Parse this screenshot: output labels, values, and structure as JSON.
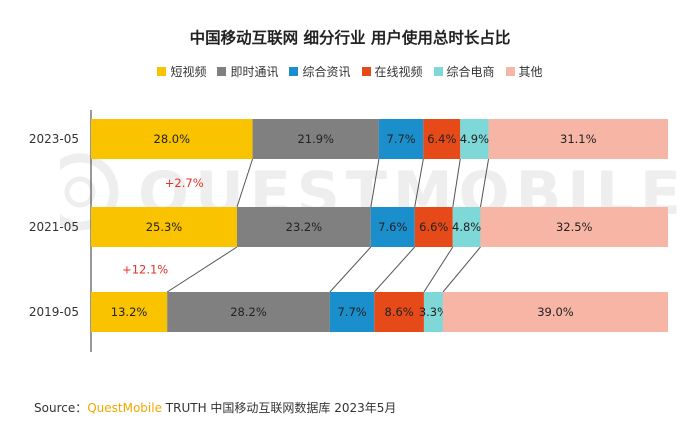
{
  "watermark": "QUESTMOBILE",
  "source": {
    "label": "Source：",
    "brand": "QuestMobile",
    "rest": " TRUTH 中国移动互联网数据库 2023年5月"
  },
  "colors": {
    "短视频": "#f9c300",
    "即时通讯": "#808080",
    "综合资讯": "#1a8fcb",
    "在线视频": "#e64a19",
    "综合电商": "#7fd8d8",
    "其他": "#f7b6a5"
  },
  "chart_data": {
    "type": "bar",
    "orientation": "horizontal",
    "stacked": true,
    "percent_stacked": true,
    "title": "中国移动互联网 细分行业 用户使用总时长占比",
    "categories": [
      "2023-05",
      "2021-05",
      "2019-05"
    ],
    "series": [
      {
        "name": "短视频",
        "values": [
          28.0,
          25.3,
          13.2
        ],
        "labels": [
          "28.0%",
          "25.3%",
          "13.2%"
        ]
      },
      {
        "name": "即时通讯",
        "values": [
          21.9,
          23.2,
          28.2
        ],
        "labels": [
          "21.9%",
          "23.2%",
          "28.2%"
        ]
      },
      {
        "name": "综合资讯",
        "values": [
          7.7,
          7.6,
          7.7
        ],
        "labels": [
          "7.7%",
          "7.6%",
          "7.7%"
        ]
      },
      {
        "name": "在线视频",
        "values": [
          6.4,
          6.6,
          8.6
        ],
        "labels": [
          "6.4%",
          "6.6%",
          "8.6%"
        ]
      },
      {
        "name": "综合电商",
        "values": [
          4.9,
          4.8,
          3.3
        ],
        "labels": [
          "4.9%",
          "4.8%",
          "3.3%"
        ]
      },
      {
        "name": "其他",
        "values": [
          31.1,
          32.5,
          39.0
        ],
        "labels": [
          "31.1%",
          "32.5%",
          "39.0%"
        ]
      }
    ],
    "annotations": [
      {
        "text": "+2.7%",
        "between": [
          "2023-05",
          "2021-05"
        ],
        "series": "短视频",
        "color": "#e8302a"
      },
      {
        "text": "+12.1%",
        "between": [
          "2021-05",
          "2019-05"
        ],
        "series": "短视频",
        "color": "#e8302a"
      }
    ],
    "xlim": [
      0,
      100
    ],
    "legend_position": "top",
    "grid": false
  }
}
